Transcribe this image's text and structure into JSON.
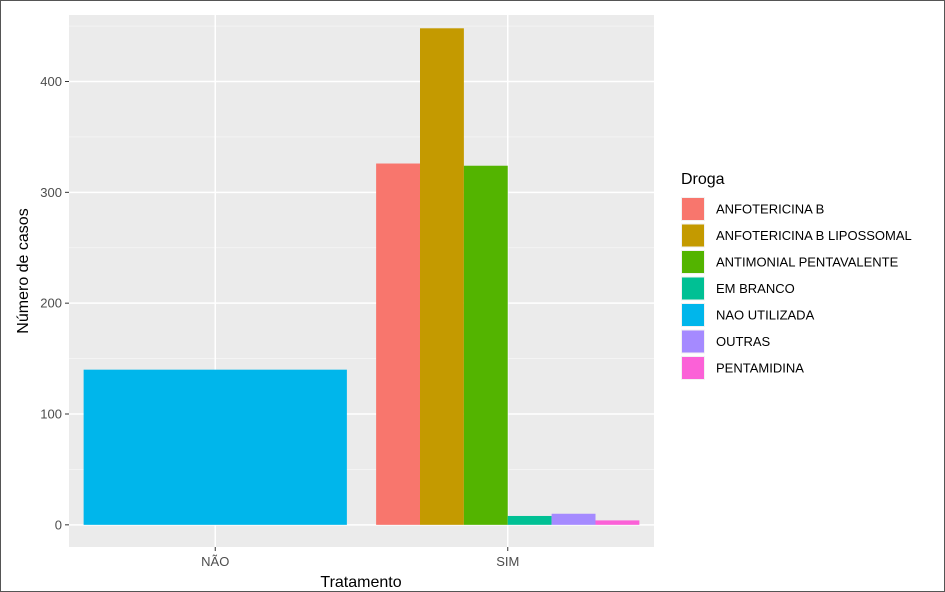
{
  "chart_data": {
    "type": "bar",
    "xlabel": "Tratamento",
    "ylabel": "Número de casos",
    "categories": [
      "NÃO",
      "SIM"
    ],
    "ylim": [
      -20,
      460
    ],
    "yticks": [
      0,
      100,
      200,
      300,
      400
    ],
    "grid": true,
    "legend": {
      "title": "Droga",
      "position": "right"
    },
    "series": [
      {
        "name": "ANFOTERICINA B",
        "color": "#F8766D",
        "values": [
          null,
          326
        ]
      },
      {
        "name": "ANFOTERICINA B LIPOSSOMAL",
        "color": "#C49A00",
        "values": [
          null,
          448
        ]
      },
      {
        "name": "ANTIMONIAL PENTAVALENTE",
        "color": "#53B400",
        "values": [
          null,
          324
        ]
      },
      {
        "name": "EM BRANCO",
        "color": "#00C094",
        "values": [
          null,
          8
        ]
      },
      {
        "name": "NAO UTILIZADA",
        "color": "#00B6EB",
        "values": [
          140,
          null
        ]
      },
      {
        "name": "OUTRAS",
        "color": "#A58AFF",
        "values": [
          null,
          10
        ]
      },
      {
        "name": "PENTAMIDINA",
        "color": "#FB61D7",
        "values": [
          null,
          4
        ]
      }
    ]
  }
}
